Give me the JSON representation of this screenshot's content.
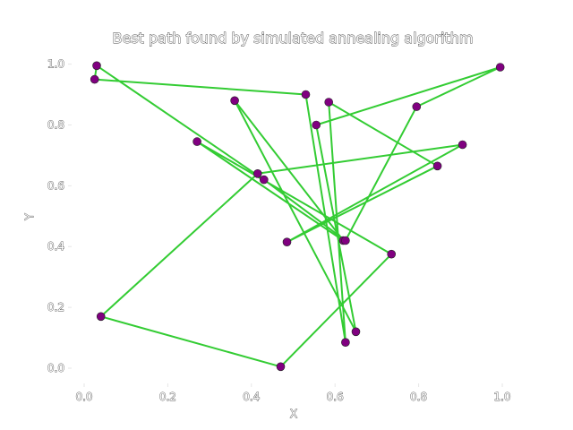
{
  "chart_data": {
    "type": "line",
    "title": "Best path found by simulated annealing algorithm",
    "xlabel": "X",
    "ylabel": "Y",
    "xlim": [
      -0.03,
      1.03
    ],
    "ylim": [
      -0.05,
      1.04
    ],
    "xticks": [
      "0.0",
      "0.2",
      "0.4",
      "0.6",
      "0.8",
      "1.0"
    ],
    "yticks": [
      "0.0",
      "0.2",
      "0.4",
      "0.6",
      "0.8",
      "1.0"
    ],
    "grid": false,
    "colors": {
      "path": "#33cc33",
      "points": "#800080"
    },
    "series": [
      {
        "x": [
          0.025,
          0.53,
          0.625,
          0.585,
          0.845,
          0.485,
          0.905,
          0.415,
          0.04,
          0.47,
          0.735,
          0.27,
          0.62,
          0.36,
          0.65,
          0.555,
          0.995,
          0.795,
          0.625,
          0.43,
          0.03,
          0.025
        ],
        "y": [
          0.95,
          0.9,
          0.085,
          0.875,
          0.665,
          0.415,
          0.735,
          0.64,
          0.17,
          0.005,
          0.375,
          0.745,
          0.42,
          0.88,
          0.12,
          0.8,
          0.99,
          0.86,
          0.42,
          0.62,
          0.995,
          0.95
        ]
      }
    ]
  }
}
